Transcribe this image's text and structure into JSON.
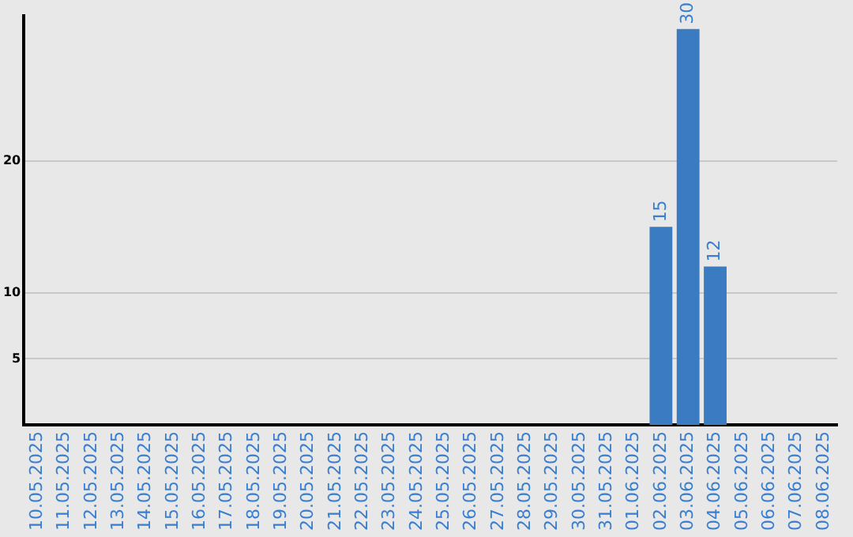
{
  "chart_data": {
    "type": "bar",
    "categories": [
      "10.05.2025",
      "11.05.2025",
      "12.05.2025",
      "13.05.2025",
      "14.05.2025",
      "15.05.2025",
      "16.05.2025",
      "17.05.2025",
      "18.05.2025",
      "19.05.2025",
      "20.05.2025",
      "21.05.2025",
      "22.05.2025",
      "23.05.2025",
      "24.05.2025",
      "25.05.2025",
      "26.05.2025",
      "27.05.2025",
      "28.05.2025",
      "29.05.2025",
      "30.05.2025",
      "31.05.2025",
      "01.06.2025",
      "02.06.2025",
      "03.06.2025",
      "04.06.2025",
      "05.06.2025",
      "06.06.2025",
      "07.06.2025",
      "08.06.2025"
    ],
    "values": [
      null,
      null,
      null,
      null,
      null,
      null,
      null,
      null,
      null,
      null,
      null,
      null,
      null,
      null,
      null,
      null,
      null,
      null,
      null,
      null,
      null,
      null,
      null,
      15,
      30,
      12,
      null,
      null,
      null,
      null
    ],
    "color": "#3a7bc2",
    "ylim": [
      0,
      31
    ],
    "yticks": [
      5,
      10,
      20
    ],
    "grid": "y",
    "data_labels": true,
    "legend": false
  }
}
